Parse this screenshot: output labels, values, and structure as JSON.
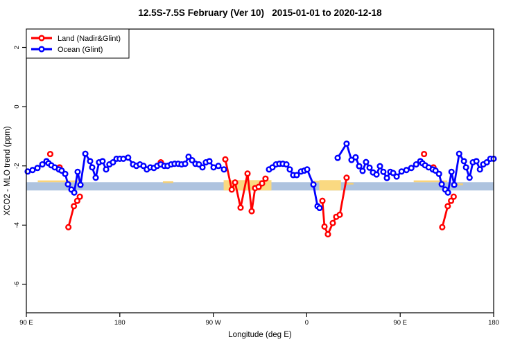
{
  "title": "12.5S-7.5S February (Ver 10)   2015-01-01 to 2020-12-18",
  "legend": {
    "items": [
      {
        "label": "Land (Nadir&Glint)",
        "color": "#ff0000"
      },
      {
        "label": "Ocean (Glint)",
        "color": "#0000ff"
      }
    ]
  },
  "colors": {
    "land": "#ff0000",
    "ocean": "#0000ff",
    "reference_band": "#aec3df",
    "highlight": "#fad981",
    "highlight_dash": "#f9cf6b",
    "frame": "#000000"
  },
  "chart_data": {
    "type": "line",
    "title": "12.5S-7.5S February (Ver 10)   2015-01-01 to 2020-12-18",
    "xlabel": "Longitude (deg E)",
    "ylabel": "XCO2 - MLO trend (ppm)",
    "x_axis": {
      "range": [
        90,
        540
      ],
      "ticks": [
        90,
        180,
        270,
        360,
        450,
        540
      ],
      "tick_labels": [
        "90 E",
        "180",
        "90 W",
        "0",
        "90 E",
        "180"
      ],
      "note_units": "longitude wraps eastward: 90E to 180, 90W, 0, 90E, 180"
    },
    "y_axis": {
      "range": [
        -6.96,
        2.62
      ],
      "ticks": [
        2,
        0,
        -2,
        -4,
        -6
      ],
      "tick_labels": [
        "2",
        "0",
        "-2",
        "-4",
        "-6"
      ]
    },
    "reference_band": {
      "y": [
        -2.83,
        -2.55
      ]
    },
    "highlight_blocks": [
      {
        "x": [
          280,
          326
        ],
        "y": [
          -2.83,
          -2.48
        ]
      },
      {
        "x": [
          372,
          393
        ],
        "y": [
          -2.83,
          -2.48
        ]
      }
    ],
    "highlight_dashes": [
      {
        "x": [
          101,
          140
        ],
        "y": -2.52
      },
      {
        "x": [
          221.5,
          231.5
        ],
        "y": -2.55
      },
      {
        "x": [
          366.5,
          373
        ],
        "y": -2.53
      },
      {
        "x": [
          398.5,
          405
        ],
        "y": -2.6
      },
      {
        "x": [
          463,
          495.5
        ],
        "y": -2.52
      },
      {
        "x": [
          502,
          510.5
        ],
        "y": -2.62
      }
    ],
    "series": [
      {
        "name": "Land (Nadir&Glint)",
        "color": "#ff0000",
        "segments": [
          [
            [
              130.5,
              -4.07
            ],
            [
              135.8,
              -3.36
            ],
            [
              139,
              -3.18
            ],
            [
              141.5,
              -3.04
            ]
          ],
          [
            [
              281.6,
              -1.78
            ],
            [
              287.8,
              -2.8
            ],
            [
              291,
              -2.56
            ],
            [
              296.3,
              -3.41
            ],
            [
              303,
              -2.26
            ],
            [
              307,
              -3.53
            ],
            [
              310.3,
              -2.75
            ],
            [
              313.7,
              -2.71
            ],
            [
              317,
              -2.59
            ],
            [
              320.3,
              -2.43
            ]
          ],
          [
            [
              375.1,
              -3.18
            ],
            [
              377.1,
              -4.05
            ],
            [
              380.4,
              -4.31
            ],
            [
              385.1,
              -3.93
            ],
            [
              388.4,
              -3.72
            ],
            [
              391.8,
              -3.65
            ],
            [
              398.4,
              -2.4
            ]
          ],
          [
            [
              490.5,
              -4.07
            ],
            [
              495.8,
              -3.36
            ],
            [
              499,
              -3.18
            ],
            [
              501.5,
              -3.04
            ]
          ]
        ],
        "isolated_points": [
          [
            113,
            -1.6
          ],
          [
            122,
            -2.05
          ],
          [
            219.5,
            -1.88
          ],
          [
            473,
            -1.6
          ],
          [
            482,
            -2.05
          ]
        ]
      },
      {
        "name": "Ocean (Glint)",
        "color": "#0000ff",
        "segments": [
          [
            [
              91.3,
              -2.19
            ],
            [
              96,
              -2.14
            ],
            [
              100.7,
              -2.07
            ],
            [
              105.4,
              -1.95
            ],
            [
              109.4,
              -1.84
            ],
            [
              111.4,
              -1.91
            ],
            [
              114,
              -1.98
            ],
            [
              117.4,
              -2.05
            ],
            [
              121.4,
              -2.12
            ],
            [
              124,
              -2.16
            ],
            [
              127.4,
              -2.27
            ],
            [
              130.1,
              -2.62
            ],
            [
              133.4,
              -2.8
            ],
            [
              136.1,
              -2.9
            ],
            [
              139.4,
              -2.2
            ],
            [
              142.1,
              -2.64
            ],
            [
              146.8,
              -1.59
            ],
            [
              151.4,
              -1.84
            ],
            [
              153.4,
              -2.05
            ],
            [
              156.8,
              -2.4
            ],
            [
              160,
              -1.88
            ],
            [
              163.4,
              -1.84
            ],
            [
              166.8,
              -2.12
            ],
            [
              170,
              -1.95
            ],
            [
              173.4,
              -1.88
            ],
            [
              176.8,
              -1.76
            ],
            [
              180,
              -1.76
            ],
            [
              183.4,
              -1.76
            ],
            [
              188,
              -1.72
            ],
            [
              192.8,
              -1.95
            ],
            [
              196,
              -2
            ],
            [
              199.4,
              -1.95
            ],
            [
              202.8,
              -2
            ],
            [
              206,
              -2.12
            ],
            [
              209.4,
              -2.05
            ],
            [
              212.8,
              -2.07
            ],
            [
              216,
              -2
            ],
            [
              219.4,
              -1.95
            ],
            [
              222.8,
              -2
            ],
            [
              226,
              -2
            ],
            [
              229.4,
              -1.95
            ],
            [
              232.8,
              -1.93
            ],
            [
              236.2,
              -1.93
            ],
            [
              239.5,
              -1.95
            ],
            [
              242.9,
              -1.93
            ],
            [
              246.2,
              -1.69
            ],
            [
              249.6,
              -1.81
            ],
            [
              252.9,
              -1.93
            ],
            [
              256.2,
              -1.95
            ],
            [
              259.6,
              -2.05
            ],
            [
              262.9,
              -1.88
            ],
            [
              266.3,
              -1.84
            ],
            [
              270.3,
              -2.05
            ],
            [
              274.9,
              -2
            ],
            [
              280.3,
              -2.12
            ]
          ],
          [
            [
              323.7,
              -2.12
            ],
            [
              327,
              -2.05
            ],
            [
              330.4,
              -1.95
            ],
            [
              333.7,
              -1.93
            ],
            [
              337,
              -1.93
            ],
            [
              340.4,
              -1.95
            ],
            [
              343.7,
              -2.12
            ],
            [
              347,
              -2.31
            ],
            [
              350.4,
              -2.31
            ],
            [
              354.5,
              -2.19
            ],
            [
              357.7,
              -2.16
            ],
            [
              360.4,
              -2.12
            ],
            [
              366.4,
              -2.63
            ],
            [
              370.4,
              -3.36
            ],
            [
              372.4,
              -3.42
            ]
          ],
          [
            [
              389.8,
              -1.73
            ],
            [
              398.4,
              -1.25
            ],
            [
              403.1,
              -1.8
            ],
            [
              407.1,
              -1.71
            ],
            [
              410.5,
              -2.01
            ],
            [
              413.8,
              -2.17
            ],
            [
              417.1,
              -1.87
            ],
            [
              420.5,
              -2.06
            ],
            [
              423.8,
              -2.22
            ],
            [
              427.2,
              -2.29
            ],
            [
              430.5,
              -2.01
            ],
            [
              433.8,
              -2.2
            ],
            [
              437.2,
              -2.41
            ],
            [
              440.5,
              -2.2
            ],
            [
              443.2,
              -2.24
            ],
            [
              446.6,
              -2.36
            ],
            [
              451.3,
              -2.19
            ],
            [
              456,
              -2.14
            ],
            [
              460.7,
              -2.07
            ],
            [
              465.4,
              -1.95
            ],
            [
              469.4,
              -1.84
            ],
            [
              471.4,
              -1.91
            ],
            [
              474,
              -1.98
            ],
            [
              477.4,
              -2.05
            ],
            [
              481.4,
              -2.12
            ],
            [
              484,
              -2.16
            ],
            [
              487.4,
              -2.27
            ],
            [
              490,
              -2.62
            ],
            [
              493.4,
              -2.8
            ],
            [
              496,
              -2.9
            ],
            [
              499.4,
              -2.2
            ],
            [
              502,
              -2.64
            ],
            [
              506.8,
              -1.59
            ],
            [
              511.4,
              -1.84
            ],
            [
              513.4,
              -2.05
            ],
            [
              516.8,
              -2.4
            ],
            [
              520,
              -1.88
            ],
            [
              523.4,
              -1.84
            ],
            [
              526.8,
              -2.12
            ],
            [
              530,
              -1.95
            ],
            [
              533.4,
              -1.88
            ],
            [
              536.8,
              -1.76
            ],
            [
              540,
              -1.76
            ]
          ]
        ],
        "isolated_points": []
      }
    ],
    "legend_position": "top-left",
    "grid": false
  }
}
